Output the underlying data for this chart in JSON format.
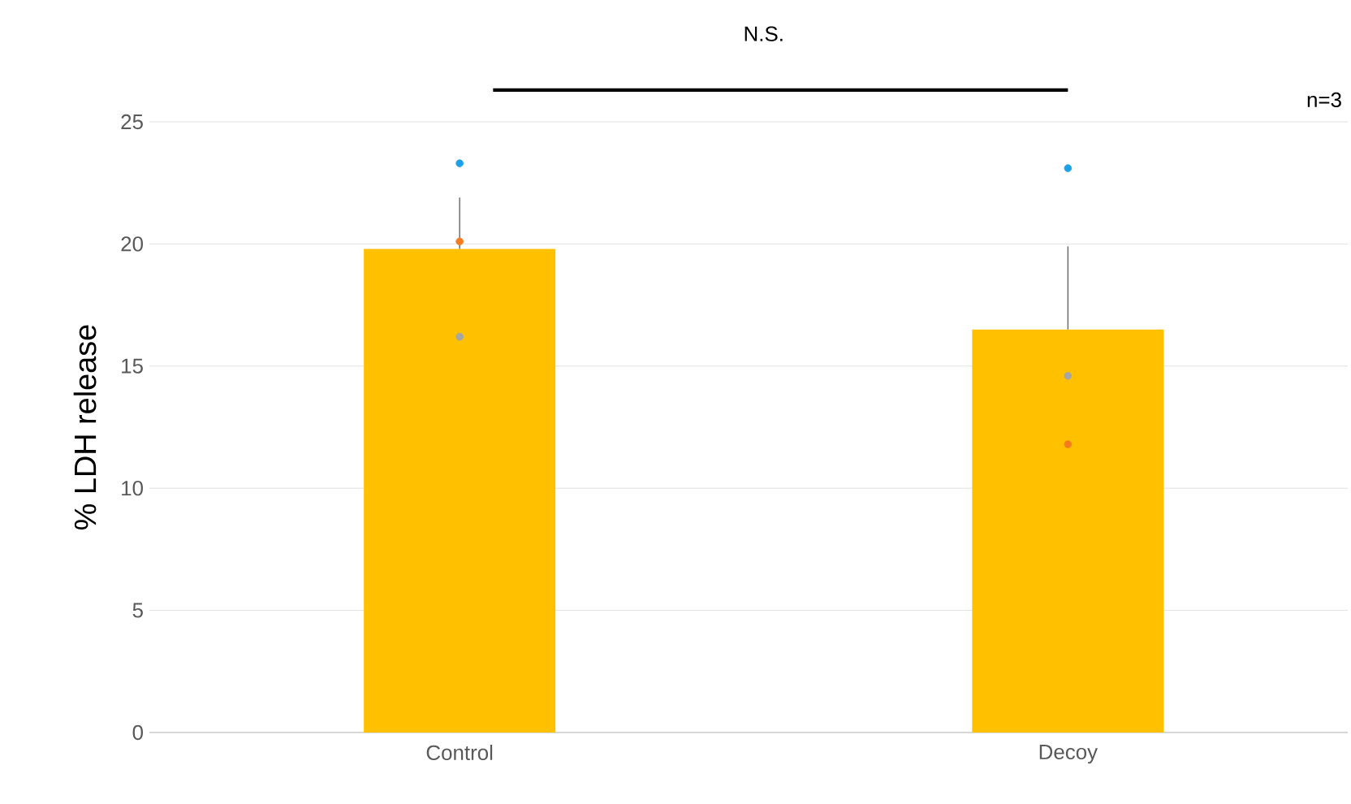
{
  "chart_data": {
    "type": "bar",
    "ylabel": "%  LDH release",
    "categories": [
      "Control",
      "Decoy"
    ],
    "ylim": [
      0,
      25
    ],
    "yticks": [
      0,
      5,
      10,
      15,
      20,
      25
    ],
    "grid": "y",
    "series": [
      {
        "color": "#ffc000",
        "values": [
          19.8,
          16.5
        ],
        "errors": [
          [
            19.8,
            21.9
          ],
          [
            16.5,
            19.9
          ]
        ]
      },
      {
        "type": "scatter",
        "color": "#1ea0e6",
        "x": [
          "Control",
          "Decoy"
        ],
        "values": [
          23.3,
          23.1
        ]
      },
      {
        "type": "scatter",
        "color": "#f47c20",
        "x": [
          "Control",
          "Decoy"
        ],
        "values": [
          20.1,
          11.8
        ]
      },
      {
        "type": "scatter",
        "color": "#a6a6a6",
        "x": [
          "Control",
          "Decoy"
        ],
        "values": [
          16.2,
          14.6
        ]
      }
    ],
    "marker": "circle",
    "annotations": [
      "N.S.",
      "n=3"
    ]
  }
}
